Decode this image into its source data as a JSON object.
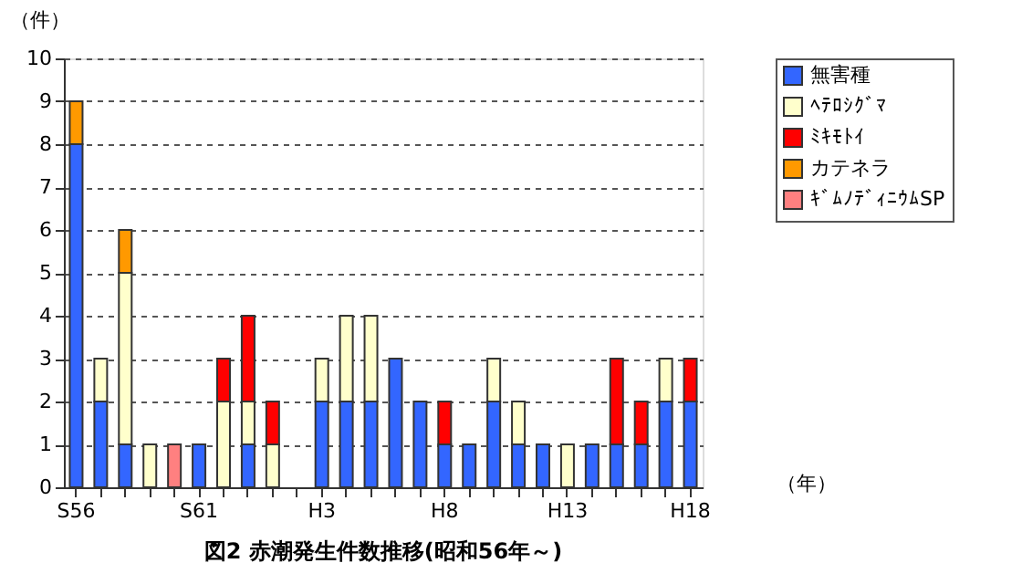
{
  "chart_data": {
    "type": "bar",
    "stacked": true,
    "title": "図2  赤潮発生件数推移(昭和56年～)",
    "ylabel": "（件）",
    "xlabel": "（年）",
    "categories": [
      "S56",
      null,
      null,
      null,
      null,
      "S61",
      null,
      null,
      null,
      null,
      "H3",
      null,
      null,
      null,
      null,
      "H8",
      null,
      null,
      null,
      null,
      "H13",
      null,
      null,
      null,
      null,
      "H18"
    ],
    "series": [
      {
        "name": "無害種",
        "color": "#3366ff",
        "values": [
          8,
          2,
          1,
          null,
          null,
          1,
          null,
          1,
          null,
          null,
          2,
          2,
          2,
          3,
          2,
          1,
          1,
          2,
          1,
          1,
          null,
          1,
          1,
          1,
          2,
          2
        ]
      },
      {
        "name": "ﾍﾃﾛｼｸﾞﾏ",
        "color": "#ffffcc",
        "values": [
          null,
          1,
          4,
          1,
          null,
          null,
          2,
          1,
          1,
          null,
          1,
          2,
          2,
          null,
          null,
          null,
          null,
          1,
          1,
          null,
          1,
          null,
          null,
          null,
          1,
          null
        ]
      },
      {
        "name": "ﾐｷﾓﾄｲ",
        "color": "#ff0000",
        "values": [
          null,
          null,
          null,
          null,
          null,
          null,
          1,
          2,
          1,
          null,
          null,
          null,
          null,
          null,
          null,
          1,
          null,
          null,
          null,
          null,
          null,
          null,
          2,
          1,
          null,
          1
        ]
      },
      {
        "name": "カテネラ",
        "color": "#ff9900",
        "values": [
          1,
          null,
          1,
          null,
          null,
          null,
          null,
          null,
          null,
          null,
          null,
          null,
          null,
          null,
          null,
          null,
          null,
          null,
          null,
          null,
          null,
          null,
          null,
          null,
          null,
          null
        ]
      },
      {
        "name": "ｷﾞﾑﾉﾃﾞｨﾆｳﾑSP",
        "color": "#ff8080",
        "values": [
          null,
          null,
          null,
          null,
          1,
          null,
          null,
          null,
          null,
          null,
          null,
          null,
          null,
          null,
          null,
          null,
          null,
          null,
          null,
          null,
          null,
          null,
          null,
          null,
          null,
          null
        ]
      }
    ],
    "ylim": [
      0,
      10
    ],
    "yticks": [
      0,
      1,
      2,
      3,
      4,
      5,
      6,
      7,
      8,
      9,
      10
    ],
    "grid": "y",
    "legend": "right"
  }
}
